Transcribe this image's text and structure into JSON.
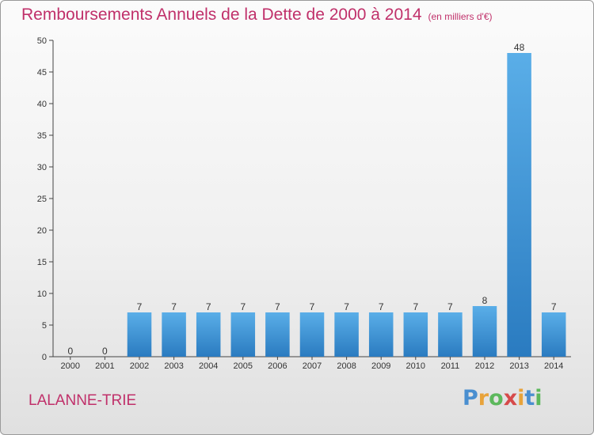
{
  "chart_data": {
    "type": "bar",
    "title": "Remboursements Annuels de la Dette de 2000 à 2014",
    "subtitle": "(en milliers d'€)",
    "categories": [
      "2000",
      "2001",
      "2002",
      "2003",
      "2004",
      "2005",
      "2006",
      "2007",
      "2008",
      "2009",
      "2010",
      "2011",
      "2012",
      "2013",
      "2014"
    ],
    "values": [
      0,
      0,
      7,
      7,
      7,
      7,
      7,
      7,
      7,
      7,
      7,
      7,
      8,
      48,
      7
    ],
    "ylim": [
      0,
      50
    ],
    "yticks": [
      0,
      5,
      10,
      15,
      20,
      25,
      30,
      35,
      40,
      45,
      50
    ],
    "grid": false,
    "bar_color_top": "#5aaee8",
    "bar_color_bottom": "#2a7bc0",
    "commune": "LALANNE-TRIE",
    "brand": {
      "letters": [
        "P",
        "r",
        "o",
        "x",
        "i",
        "t",
        "i"
      ],
      "colors": [
        "#4a8fd0",
        "#e8a33a",
        "#5cb85c",
        "#d64a4a",
        "#e8a33a",
        "#4a8fd0",
        "#5cb85c"
      ]
    }
  }
}
